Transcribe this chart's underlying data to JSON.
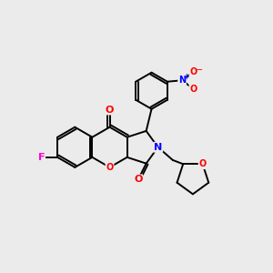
{
  "background_color": "#ebebeb",
  "bond_color": "#000000",
  "bond_width": 1.4,
  "atom_colors": {
    "F": "#ff00dd",
    "O": "#ff0000",
    "N": "#0000ff",
    "C": "#000000"
  },
  "font_size_large": 8,
  "font_size_small": 7,
  "fig_width": 3.0,
  "fig_height": 3.0,
  "dpi": 100
}
